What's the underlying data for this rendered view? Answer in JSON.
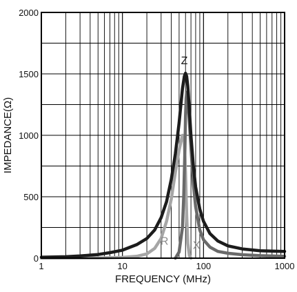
{
  "chart_data": {
    "type": "line",
    "title": "",
    "xlabel": "FREQUENCY (MHz)",
    "ylabel": "IMPEDANCE(Ω)",
    "x_scale": "log",
    "xlim": [
      1,
      1000
    ],
    "ylim": [
      0,
      2000
    ],
    "grid": true,
    "x_tick_labels": [
      "1",
      "10",
      "100",
      "1000"
    ],
    "y_tick_labels": [
      "0",
      "500",
      "1000",
      "1500",
      "2000"
    ],
    "x_ticks": [
      1,
      10,
      100,
      1000
    ],
    "y_ticks": [
      0,
      500,
      1000,
      1500,
      2000
    ],
    "series": [
      {
        "name": "R",
        "color": "#a6a6a6",
        "x": [
          1,
          5,
          10,
          15,
          20,
          25,
          30,
          35,
          40,
          45,
          50,
          55,
          58,
          60,
          62,
          64,
          67,
          70
        ],
        "y": [
          0,
          2,
          6,
          15,
          35,
          80,
          160,
          300,
          480,
          700,
          880,
          1000,
          950,
          700,
          350,
          120,
          20,
          0
        ]
      },
      {
        "name": "X",
        "color": "#6a6a6a",
        "x": [
          45,
          50,
          55,
          57,
          59,
          60,
          61,
          62,
          64,
          67,
          70,
          75,
          80,
          90,
          100,
          120,
          150,
          200,
          300,
          500,
          1000
        ],
        "y": [
          0,
          50,
          250,
          500,
          900,
          1150,
          1300,
          1350,
          1300,
          1100,
          900,
          600,
          420,
          230,
          150,
          90,
          55,
          40,
          28,
          20,
          15
        ]
      },
      {
        "name": "Z",
        "color": "#1c1c1c",
        "x": [
          1,
          2,
          3,
          5,
          7,
          10,
          15,
          20,
          25,
          30,
          35,
          40,
          45,
          50,
          55,
          58,
          60,
          62,
          64,
          67,
          70,
          75,
          80,
          90,
          100,
          120,
          150,
          200,
          300,
          500,
          1000
        ],
        "y": [
          8,
          12,
          18,
          30,
          45,
          65,
          110,
          160,
          230,
          330,
          460,
          640,
          850,
          1100,
          1380,
          1480,
          1505,
          1480,
          1400,
          1200,
          1000,
          750,
          580,
          400,
          300,
          200,
          140,
          100,
          75,
          60,
          55
        ]
      }
    ],
    "curve_labels": [
      {
        "text": "Z",
        "x": 58,
        "y": 1580
      },
      {
        "text": "R",
        "x": 33,
        "y": 110
      },
      {
        "text": "X",
        "x": 82,
        "y": 75
      }
    ]
  }
}
